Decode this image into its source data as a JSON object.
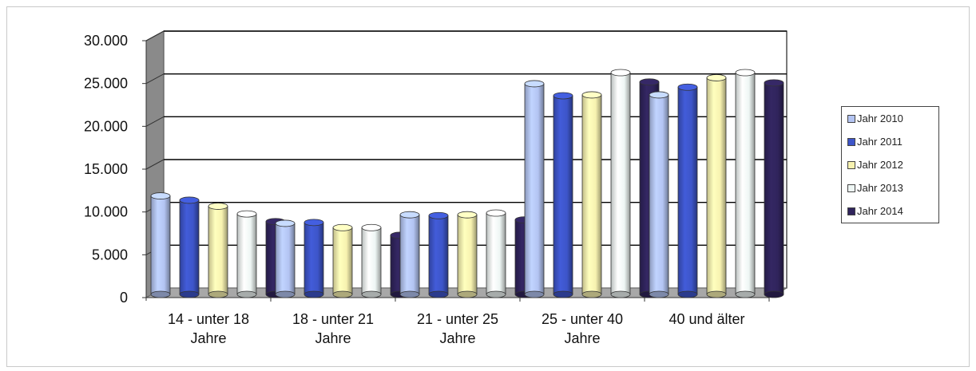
{
  "chart_data": {
    "type": "bar",
    "title": "",
    "xlabel": "",
    "ylabel": "",
    "categories": [
      [
        "14 - unter 18",
        "Jahre"
      ],
      [
        "18 - unter 21",
        "Jahre"
      ],
      [
        "21 - unter 25",
        "Jahre"
      ],
      [
        "25 - unter 40",
        "Jahre"
      ],
      [
        "40 und älter"
      ]
    ],
    "yticks": [
      "0",
      "5.000",
      "10.000",
      "15.000",
      "20.000",
      "25.000",
      "30.000"
    ],
    "ylim": [
      0,
      30000
    ],
    "grid": true,
    "legend_position": "right",
    "series": [
      {
        "name": "Jahr 2010",
        "color": "#b3c4f2",
        "values": [
          11500,
          8300,
          9300,
          24600,
          23300
        ]
      },
      {
        "name": "Jahr 2011",
        "color": "#3d55c9",
        "values": [
          11000,
          8400,
          9200,
          23200,
          24200
        ]
      },
      {
        "name": "Jahr 2012",
        "color": "#f7f2b0",
        "values": [
          10300,
          7800,
          9300,
          23300,
          25300
        ]
      },
      {
        "name": "Jahr 2013",
        "color": "#eef6f4",
        "values": [
          9400,
          7800,
          9500,
          25900,
          25900
        ]
      },
      {
        "name": "Jahr 2014",
        "color": "#30245c",
        "values": [
          8500,
          6900,
          8700,
          24800,
          24700
        ]
      }
    ]
  }
}
